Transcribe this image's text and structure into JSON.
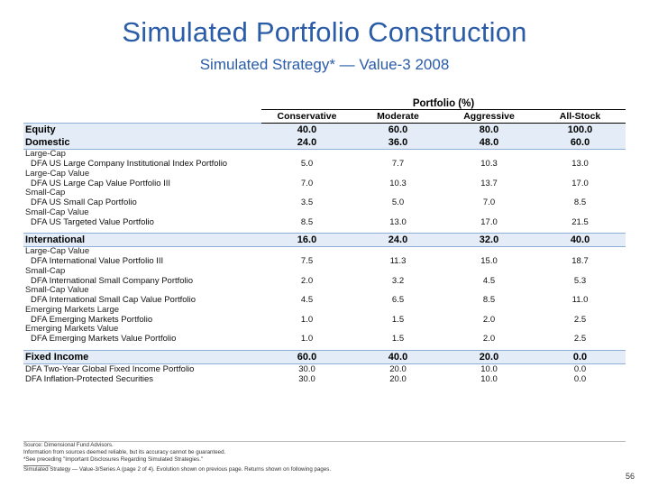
{
  "header": {
    "title": "Simulated Portfolio Construction",
    "subtitle": "Simulated Strategy* — Value-3 2008"
  },
  "table": {
    "group_header": "Portfolio (%)",
    "columns": [
      "Conservative",
      "Moderate",
      "Aggressive",
      "All-Stock"
    ],
    "rows": [
      {
        "label": "Equity",
        "values": [
          "40.0",
          "60.0",
          "80.0",
          "100.0"
        ]
      },
      {
        "label": "Domestic",
        "values": [
          "24.0",
          "36.0",
          "48.0",
          "60.0"
        ]
      },
      {
        "label": "Large-Cap",
        "values": []
      },
      {
        "label": "DFA US Large Company Institutional Index Portfolio",
        "values": [
          "5.0",
          "7.7",
          "10.3",
          "13.0"
        ]
      },
      {
        "label": "Large-Cap Value",
        "values": []
      },
      {
        "label": "DFA US Large Cap Value Portfolio III",
        "values": [
          "7.0",
          "10.3",
          "13.7",
          "17.0"
        ]
      },
      {
        "label": "Small-Cap",
        "values": []
      },
      {
        "label": "DFA US Small Cap Portfolio",
        "values": [
          "3.5",
          "5.0",
          "7.0",
          "8.5"
        ]
      },
      {
        "label": "Small-Cap Value",
        "values": []
      },
      {
        "label": "DFA US Targeted Value Portfolio",
        "values": [
          "8.5",
          "13.0",
          "17.0",
          "21.5"
        ]
      },
      {
        "label": "International",
        "values": [
          "16.0",
          "24.0",
          "32.0",
          "40.0"
        ]
      },
      {
        "label": "Large-Cap Value",
        "values": []
      },
      {
        "label": "DFA International Value Portfolio III",
        "values": [
          "7.5",
          "11.3",
          "15.0",
          "18.7"
        ]
      },
      {
        "label": "Small-Cap",
        "values": []
      },
      {
        "label": "DFA International Small Company Portfolio",
        "values": [
          "2.0",
          "3.2",
          "4.5",
          "5.3"
        ]
      },
      {
        "label": "Small-Cap Value",
        "values": []
      },
      {
        "label": "DFA International Small Cap Value Portfolio",
        "values": [
          "4.5",
          "6.5",
          "8.5",
          "11.0"
        ]
      },
      {
        "label": "Emerging Markets Large",
        "values": []
      },
      {
        "label": "DFA Emerging Markets Portfolio",
        "values": [
          "1.0",
          "1.5",
          "2.0",
          "2.5"
        ]
      },
      {
        "label": "Emerging Markets Value",
        "values": []
      },
      {
        "label": "DFA Emerging Markets Value Portfolio",
        "values": [
          "1.0",
          "1.5",
          "2.0",
          "2.5"
        ]
      },
      {
        "label": "Fixed Income",
        "values": [
          "60.0",
          "40.0",
          "20.0",
          "0.0"
        ]
      },
      {
        "label": "DFA Two-Year Global Fixed Income Portfolio",
        "values": [
          "30.0",
          "20.0",
          "10.0",
          "0.0"
        ]
      },
      {
        "label": "DFA Inflation-Protected Securities",
        "values": [
          "30.0",
          "20.0",
          "10.0",
          "0.0"
        ]
      }
    ]
  },
  "footer": {
    "source": "Source: Dimensional Fund Advisors.",
    "info": "Information from sources deemed reliable, but its accuracy cannot be guaranteed.",
    "see": "*See preceding \"Important Disclosures Regarding Simulated Strategies.\"",
    "note": "Simulated Strategy — Value-3/Series A (page 2 of 4). Evolution shown on previous page. Returns shown on following pages.",
    "page_number": "56"
  },
  "colors": {
    "title": "#2a5ca8",
    "band_fill": "#e4edf7",
    "band_border": "#8fb0d6"
  }
}
